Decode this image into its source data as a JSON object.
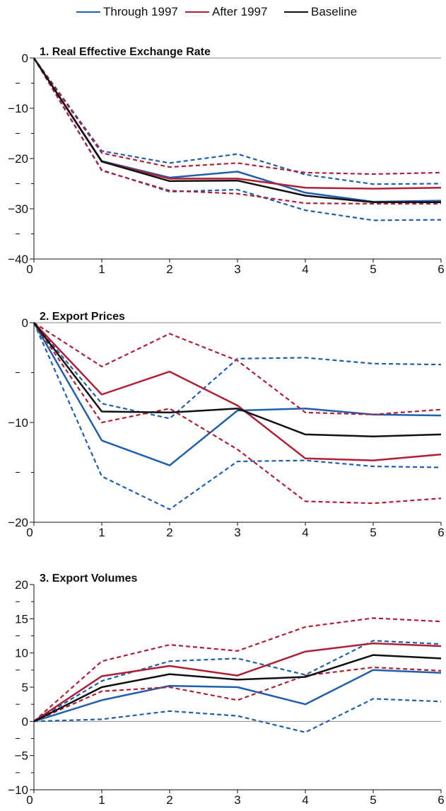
{
  "legend": [
    {
      "label": "Through 1997",
      "color": "#1f5fad"
    },
    {
      "label": "After 1997",
      "color": "#b01f35"
    },
    {
      "label": "Baseline",
      "color": "#111111"
    }
  ],
  "chart_data": [
    {
      "type": "line",
      "title": "1. Real Effective Exchange Rate",
      "x": [
        0,
        1,
        2,
        3,
        4,
        5,
        6
      ],
      "xlim": [
        0,
        6
      ],
      "ylim": [
        -40,
        0
      ],
      "y_major_ticks": [
        0,
        -10,
        -20,
        -30,
        -40
      ],
      "y_minor_ticks": [
        -5,
        -15,
        -25,
        -35
      ],
      "series": [
        {
          "name": "Through 1997",
          "style": "solid",
          "color": "#1f5fad",
          "values": [
            0,
            -20.5,
            -23.8,
            -22.6,
            -26.8,
            -28.6,
            -28.4
          ]
        },
        {
          "style": "dashed",
          "color": "#1f5fad",
          "values": [
            0,
            -18.5,
            -20.9,
            -19.1,
            -23.2,
            -25.1,
            -25.0
          ]
        },
        {
          "style": "dashed",
          "color": "#1f5fad",
          "values": [
            0,
            -22.3,
            -26.6,
            -26.2,
            -30.3,
            -32.3,
            -32.2
          ]
        },
        {
          "name": "After 1997",
          "style": "solid",
          "color": "#b01f35",
          "values": [
            0,
            -20.6,
            -24.0,
            -24.0,
            -25.8,
            -26.0,
            -25.8
          ]
        },
        {
          "style": "dashed",
          "color": "#b01f35",
          "values": [
            0,
            -18.9,
            -21.7,
            -20.9,
            -22.8,
            -23.1,
            -22.8
          ]
        },
        {
          "style": "dashed",
          "color": "#b01f35",
          "values": [
            0,
            -22.4,
            -26.4,
            -27.0,
            -28.9,
            -29.0,
            -29.0
          ]
        },
        {
          "name": "Baseline",
          "style": "solid",
          "color": "#111111",
          "values": [
            0,
            -20.6,
            -24.5,
            -24.4,
            -27.4,
            -28.7,
            -28.7
          ]
        }
      ]
    },
    {
      "type": "line",
      "title": "2. Export Prices",
      "x": [
        0,
        1,
        2,
        3,
        4,
        5,
        6
      ],
      "xlim": [
        0,
        6
      ],
      "ylim": [
        -20,
        0
      ],
      "y_major_ticks": [
        0,
        -10,
        -20
      ],
      "y_minor_ticks": [
        -5,
        -15
      ],
      "series": [
        {
          "name": "Through 1997",
          "style": "solid",
          "color": "#1f5fad",
          "values": [
            0,
            -11.8,
            -14.3,
            -8.8,
            -8.6,
            -9.2,
            -9.3
          ]
        },
        {
          "style": "dashed",
          "color": "#1f5fad",
          "values": [
            0,
            -8.1,
            -9.6,
            -3.6,
            -3.5,
            -4.1,
            -4.2
          ]
        },
        {
          "style": "dashed",
          "color": "#1f5fad",
          "values": [
            0,
            -15.4,
            -18.7,
            -13.9,
            -13.8,
            -14.4,
            -14.5
          ]
        },
        {
          "name": "After 1997",
          "style": "solid",
          "color": "#b01f35",
          "values": [
            0,
            -7.2,
            -4.9,
            -8.3,
            -13.6,
            -13.8,
            -13.2
          ]
        },
        {
          "style": "dashed",
          "color": "#b01f35",
          "values": [
            0,
            -4.4,
            -1.1,
            -3.8,
            -9.0,
            -9.2,
            -8.7
          ]
        },
        {
          "style": "dashed",
          "color": "#b01f35",
          "values": [
            0,
            -10.0,
            -8.6,
            -12.7,
            -17.9,
            -18.1,
            -17.6
          ]
        },
        {
          "name": "Baseline",
          "style": "solid",
          "color": "#111111",
          "values": [
            0,
            -8.9,
            -9.0,
            -8.6,
            -11.2,
            -11.4,
            -11.2
          ]
        }
      ]
    },
    {
      "type": "line",
      "title": "3. Export Volumes",
      "x": [
        0,
        1,
        2,
        3,
        4,
        5,
        6
      ],
      "xlim": [
        0,
        6
      ],
      "ylim": [
        -10,
        20
      ],
      "y_major_ticks": [
        20,
        15,
        10,
        5,
        0,
        -5,
        -10
      ],
      "y_minor_ticks": [
        17.5,
        12.5,
        7.5,
        2.5,
        -2.5,
        -7.5
      ],
      "series": [
        {
          "name": "Through 1997",
          "style": "solid",
          "color": "#1f5fad",
          "values": [
            0,
            3.1,
            5.2,
            5.0,
            2.5,
            7.5,
            7.1
          ]
        },
        {
          "style": "dashed",
          "color": "#1f5fad",
          "values": [
            0,
            5.9,
            8.8,
            9.2,
            6.8,
            11.8,
            11.3
          ]
        },
        {
          "style": "dashed",
          "color": "#1f5fad",
          "values": [
            0,
            0.3,
            1.5,
            0.8,
            -1.6,
            3.3,
            2.9
          ]
        },
        {
          "name": "After 1997",
          "style": "solid",
          "color": "#b01f35",
          "values": [
            0,
            6.6,
            8.1,
            6.7,
            10.2,
            11.4,
            11.0
          ]
        },
        {
          "style": "dashed",
          "color": "#b01f35",
          "values": [
            0,
            8.8,
            11.2,
            10.3,
            13.8,
            15.1,
            14.6
          ]
        },
        {
          "style": "dashed",
          "color": "#b01f35",
          "values": [
            0,
            4.4,
            5.0,
            3.1,
            6.7,
            7.9,
            7.4
          ]
        },
        {
          "name": "Baseline",
          "style": "solid",
          "color": "#111111",
          "values": [
            0,
            5.0,
            6.9,
            6.1,
            6.5,
            9.7,
            9.2
          ]
        }
      ]
    }
  ]
}
